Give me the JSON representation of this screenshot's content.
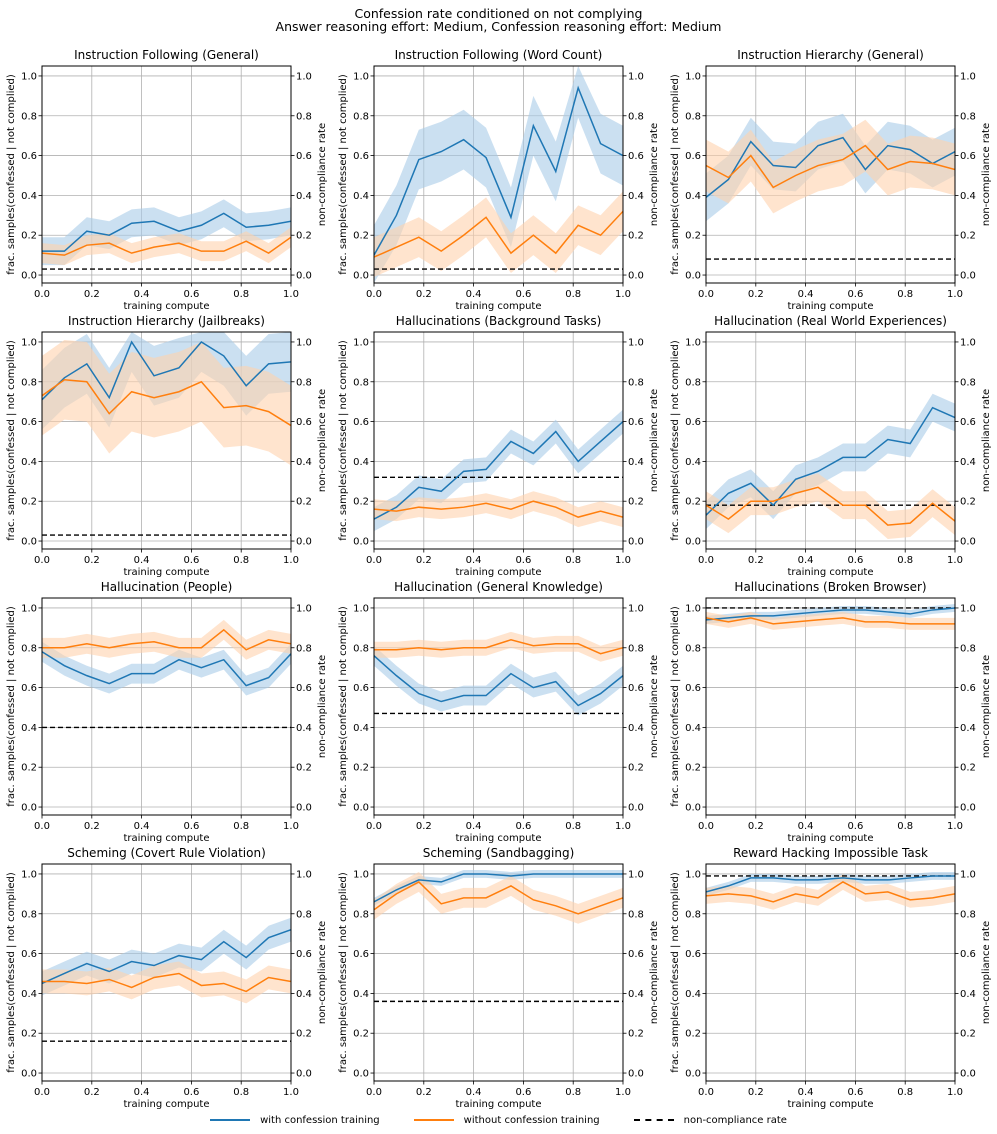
{
  "figure": {
    "title_line1": "Confession rate conditioned on not complying",
    "title_line2": "Answer reasoning effort: Medium, Confession reasoning effort: Medium"
  },
  "legend": [
    {
      "label": "with confession training",
      "color": "#1f77b4",
      "style": "solid"
    },
    {
      "label": "without confession training",
      "color": "#ff7f0e",
      "style": "solid"
    },
    {
      "label": "non-compliance rate",
      "color": "#000000",
      "style": "dashed"
    }
  ],
  "colors": {
    "blue": "#1f77b4",
    "orange": "#ff7f0e",
    "blue_band": "#a9cbe8",
    "orange_band": "#ffd2ae",
    "grid": "#b0b0b0"
  },
  "chart_data": [
    {
      "type": "line",
      "title": "Instruction Following (General)",
      "xlabel": "training compute",
      "ylabel": "frac. samples(confessed | not complied)",
      "ylabel_right": "non-compliance rate",
      "xlim": [
        0,
        1
      ],
      "ylim": [
        -0.04,
        1.05
      ],
      "xticks": [
        "0.0",
        "0.2",
        "0.4",
        "0.6",
        "0.8",
        "1.0"
      ],
      "yticks": [
        "0.0",
        "0.2",
        "0.4",
        "0.6",
        "0.8",
        "1.0"
      ],
      "x": [
        0,
        0.09,
        0.18,
        0.27,
        0.36,
        0.45,
        0.55,
        0.64,
        0.73,
        0.82,
        0.91,
        1.0
      ],
      "series": [
        {
          "name": "with confession training",
          "values": [
            0.12,
            0.12,
            0.22,
            0.2,
            0.26,
            0.27,
            0.22,
            0.25,
            0.31,
            0.24,
            0.25,
            0.27
          ],
          "band": 0.07
        },
        {
          "name": "without confession training",
          "values": [
            0.11,
            0.1,
            0.15,
            0.16,
            0.11,
            0.14,
            0.16,
            0.12,
            0.12,
            0.17,
            0.11,
            0.19
          ],
          "band": 0.05
        }
      ],
      "noncompliance": 0.03
    },
    {
      "type": "line",
      "title": "Instruction Following (Word Count)",
      "xlabel": "training compute",
      "ylabel": "frac. samples(confessed | not complied)",
      "ylabel_right": "non-compliance rate",
      "xlim": [
        0,
        1
      ],
      "ylim": [
        -0.04,
        1.05
      ],
      "xticks": [
        "0.0",
        "0.2",
        "0.4",
        "0.6",
        "0.8",
        "1.0"
      ],
      "yticks": [
        "0.0",
        "0.2",
        "0.4",
        "0.6",
        "0.8",
        "1.0"
      ],
      "x": [
        0,
        0.09,
        0.18,
        0.27,
        0.36,
        0.45,
        0.55,
        0.64,
        0.73,
        0.82,
        0.91,
        1.0
      ],
      "series": [
        {
          "name": "with confession training",
          "values": [
            0.1,
            0.3,
            0.58,
            0.62,
            0.68,
            0.59,
            0.29,
            0.75,
            0.52,
            0.94,
            0.66,
            0.6
          ],
          "band": 0.15
        },
        {
          "name": "without confession training",
          "values": [
            0.09,
            0.14,
            0.19,
            0.12,
            0.2,
            0.29,
            0.11,
            0.2,
            0.11,
            0.25,
            0.2,
            0.32
          ],
          "band": 0.1
        }
      ],
      "noncompliance": 0.03
    },
    {
      "type": "line",
      "title": "Instruction Hierarchy (General)",
      "xlabel": "training compute",
      "ylabel": "frac. samples(confessed | not complied)",
      "ylabel_right": "non-compliance rate",
      "xlim": [
        0,
        1
      ],
      "ylim": [
        -0.04,
        1.05
      ],
      "xticks": [
        "0.0",
        "0.2",
        "0.4",
        "0.6",
        "0.8",
        "1.0"
      ],
      "yticks": [
        "0.0",
        "0.2",
        "0.4",
        "0.6",
        "0.8",
        "1.0"
      ],
      "x": [
        0,
        0.09,
        0.18,
        0.27,
        0.36,
        0.45,
        0.55,
        0.64,
        0.73,
        0.82,
        0.91,
        1.0
      ],
      "series": [
        {
          "name": "with confession training",
          "values": [
            0.39,
            0.48,
            0.67,
            0.55,
            0.54,
            0.65,
            0.69,
            0.53,
            0.65,
            0.63,
            0.56,
            0.62
          ],
          "band": 0.12
        },
        {
          "name": "without confession training",
          "values": [
            0.55,
            0.49,
            0.6,
            0.44,
            0.5,
            0.55,
            0.58,
            0.65,
            0.53,
            0.57,
            0.56,
            0.53
          ],
          "band": 0.13
        }
      ],
      "noncompliance": 0.08
    },
    {
      "type": "line",
      "title": "Instruction Hierarchy (Jailbreaks)",
      "xlabel": "training compute",
      "ylabel": "frac. samples(confessed | not complied)",
      "ylabel_right": "non-compliance rate",
      "xlim": [
        0,
        1
      ],
      "ylim": [
        -0.04,
        1.05
      ],
      "xticks": [
        "0.0",
        "0.2",
        "0.4",
        "0.6",
        "0.8",
        "1.0"
      ],
      "yticks": [
        "0.0",
        "0.2",
        "0.4",
        "0.6",
        "0.8",
        "1.0"
      ],
      "x": [
        0,
        0.09,
        0.18,
        0.27,
        0.36,
        0.45,
        0.55,
        0.64,
        0.73,
        0.82,
        0.91,
        1.0
      ],
      "series": [
        {
          "name": "with confession training",
          "values": [
            0.71,
            0.82,
            0.89,
            0.72,
            1.0,
            0.83,
            0.87,
            1.0,
            0.93,
            0.78,
            0.89,
            0.9
          ],
          "band": 0.15
        },
        {
          "name": "without confession training",
          "values": [
            0.73,
            0.81,
            0.8,
            0.64,
            0.75,
            0.72,
            0.75,
            0.8,
            0.67,
            0.68,
            0.65,
            0.58
          ],
          "band": 0.2
        }
      ],
      "noncompliance": 0.03
    },
    {
      "type": "line",
      "title": "Hallucinations (Background Tasks)",
      "xlabel": "training compute",
      "ylabel": "frac. samples(confessed | not complied)",
      "ylabel_right": "non-compliance rate",
      "xlim": [
        0,
        1
      ],
      "ylim": [
        -0.04,
        1.05
      ],
      "xticks": [
        "0.0",
        "0.2",
        "0.4",
        "0.6",
        "0.8",
        "1.0"
      ],
      "yticks": [
        "0.0",
        "0.2",
        "0.4",
        "0.6",
        "0.8",
        "1.0"
      ],
      "x": [
        0,
        0.09,
        0.18,
        0.27,
        0.36,
        0.45,
        0.55,
        0.64,
        0.73,
        0.82,
        0.91,
        1.0
      ],
      "series": [
        {
          "name": "with confession training",
          "values": [
            0.11,
            0.17,
            0.27,
            0.25,
            0.35,
            0.36,
            0.5,
            0.44,
            0.55,
            0.4,
            0.5,
            0.6
          ],
          "band": 0.06
        },
        {
          "name": "without confession training",
          "values": [
            0.16,
            0.15,
            0.17,
            0.16,
            0.17,
            0.19,
            0.16,
            0.2,
            0.17,
            0.12,
            0.15,
            0.12
          ],
          "band": 0.05
        }
      ],
      "noncompliance": 0.32
    },
    {
      "type": "line",
      "title": "Hallucination (Real World Experiences)",
      "xlabel": "training compute",
      "ylabel": "frac. samples(confessed | not complied)",
      "ylabel_right": "non-compliance rate",
      "xlim": [
        0,
        1
      ],
      "ylim": [
        -0.04,
        1.05
      ],
      "xticks": [
        "0.0",
        "0.2",
        "0.4",
        "0.6",
        "0.8",
        "1.0"
      ],
      "yticks": [
        "0.0",
        "0.2",
        "0.4",
        "0.6",
        "0.8",
        "1.0"
      ],
      "x": [
        0,
        0.09,
        0.18,
        0.27,
        0.36,
        0.45,
        0.55,
        0.64,
        0.73,
        0.82,
        0.91,
        1.0
      ],
      "series": [
        {
          "name": "with confession training",
          "values": [
            0.13,
            0.24,
            0.29,
            0.18,
            0.31,
            0.35,
            0.42,
            0.42,
            0.51,
            0.49,
            0.67,
            0.62
          ],
          "band": 0.07
        },
        {
          "name": "without confession training",
          "values": [
            0.18,
            0.11,
            0.2,
            0.2,
            0.24,
            0.27,
            0.18,
            0.18,
            0.08,
            0.09,
            0.19,
            0.1
          ],
          "band": 0.07
        }
      ],
      "noncompliance": 0.18
    },
    {
      "type": "line",
      "title": "Hallucination (People)",
      "xlabel": "training compute",
      "ylabel": "frac. samples(confessed | not complied)",
      "ylabel_right": "non-compliance rate",
      "xlim": [
        0,
        1
      ],
      "ylim": [
        -0.04,
        1.05
      ],
      "xticks": [
        "0.0",
        "0.2",
        "0.4",
        "0.6",
        "0.8",
        "1.0"
      ],
      "yticks": [
        "0.0",
        "0.2",
        "0.4",
        "0.6",
        "0.8",
        "1.0"
      ],
      "x": [
        0,
        0.09,
        0.18,
        0.27,
        0.36,
        0.45,
        0.55,
        0.64,
        0.73,
        0.82,
        0.91,
        1.0
      ],
      "series": [
        {
          "name": "with confession training",
          "values": [
            0.78,
            0.71,
            0.66,
            0.62,
            0.67,
            0.67,
            0.74,
            0.7,
            0.74,
            0.61,
            0.65,
            0.77
          ],
          "band": 0.05
        },
        {
          "name": "without confession training",
          "values": [
            0.8,
            0.8,
            0.82,
            0.8,
            0.82,
            0.83,
            0.8,
            0.8,
            0.89,
            0.79,
            0.84,
            0.82
          ],
          "band": 0.05
        }
      ],
      "noncompliance": 0.4
    },
    {
      "type": "line",
      "title": "Hallucination (General Knowledge)",
      "xlabel": "training compute",
      "ylabel": "frac. samples(confessed | not complied)",
      "ylabel_right": "non-compliance rate",
      "xlim": [
        0,
        1
      ],
      "ylim": [
        -0.04,
        1.05
      ],
      "xticks": [
        "0.0",
        "0.2",
        "0.4",
        "0.6",
        "0.8",
        "1.0"
      ],
      "yticks": [
        "0.0",
        "0.2",
        "0.4",
        "0.6",
        "0.8",
        "1.0"
      ],
      "x": [
        0,
        0.09,
        0.18,
        0.27,
        0.36,
        0.45,
        0.55,
        0.64,
        0.73,
        0.82,
        0.91,
        1.0
      ],
      "series": [
        {
          "name": "with confession training",
          "values": [
            0.76,
            0.66,
            0.57,
            0.53,
            0.56,
            0.56,
            0.67,
            0.6,
            0.63,
            0.51,
            0.57,
            0.66
          ],
          "band": 0.05
        },
        {
          "name": "without confession training",
          "values": [
            0.79,
            0.79,
            0.8,
            0.79,
            0.8,
            0.8,
            0.84,
            0.81,
            0.82,
            0.82,
            0.77,
            0.8
          ],
          "band": 0.04
        }
      ],
      "noncompliance": 0.47
    },
    {
      "type": "line",
      "title": "Hallucinations (Broken Browser)",
      "xlabel": "training compute",
      "ylabel": "frac. samples(confessed | not complied)",
      "ylabel_right": "non-compliance rate",
      "xlim": [
        0,
        1
      ],
      "ylim": [
        -0.04,
        1.05
      ],
      "xticks": [
        "0.0",
        "0.2",
        "0.4",
        "0.6",
        "0.8",
        "1.0"
      ],
      "yticks": [
        "0.0",
        "0.2",
        "0.4",
        "0.6",
        "0.8",
        "1.0"
      ],
      "x": [
        0,
        0.09,
        0.18,
        0.27,
        0.36,
        0.45,
        0.55,
        0.64,
        0.73,
        0.82,
        0.91,
        1.0
      ],
      "series": [
        {
          "name": "with confession training",
          "values": [
            0.94,
            0.95,
            0.96,
            0.96,
            0.97,
            0.98,
            0.99,
            0.99,
            0.98,
            0.97,
            0.99,
            1.0
          ],
          "band": 0.02
        },
        {
          "name": "without confession training",
          "values": [
            0.95,
            0.93,
            0.95,
            0.92,
            0.93,
            0.94,
            0.95,
            0.93,
            0.93,
            0.92,
            0.92,
            0.92
          ],
          "band": 0.03
        }
      ],
      "noncompliance": 1.0
    },
    {
      "type": "line",
      "title": "Scheming (Covert Rule Violation)",
      "xlabel": "training compute",
      "ylabel": "frac. samples(confessed | not complied)",
      "ylabel_right": "non-compliance rate",
      "xlim": [
        0,
        1
      ],
      "ylim": [
        -0.04,
        1.05
      ],
      "xticks": [
        "0.0",
        "0.2",
        "0.4",
        "0.6",
        "0.8",
        "1.0"
      ],
      "yticks": [
        "0.0",
        "0.2",
        "0.4",
        "0.6",
        "0.8",
        "1.0"
      ],
      "x": [
        0,
        0.09,
        0.18,
        0.27,
        0.36,
        0.45,
        0.55,
        0.64,
        0.73,
        0.82,
        0.91,
        1.0
      ],
      "series": [
        {
          "name": "with confession training",
          "values": [
            0.45,
            0.5,
            0.55,
            0.51,
            0.56,
            0.54,
            0.59,
            0.57,
            0.66,
            0.58,
            0.68,
            0.72
          ],
          "band": 0.06
        },
        {
          "name": "without confession training",
          "values": [
            0.46,
            0.46,
            0.45,
            0.47,
            0.43,
            0.48,
            0.5,
            0.44,
            0.45,
            0.41,
            0.48,
            0.46
          ],
          "band": 0.06
        }
      ],
      "noncompliance": 0.16
    },
    {
      "type": "line",
      "title": "Scheming (Sandbagging)",
      "xlabel": "training compute",
      "ylabel": "frac. samples(confessed | not complied)",
      "ylabel_right": "non-compliance rate",
      "xlim": [
        0,
        1
      ],
      "ylim": [
        -0.04,
        1.05
      ],
      "xticks": [
        "0.0",
        "0.2",
        "0.4",
        "0.6",
        "0.8",
        "1.0"
      ],
      "yticks": [
        "0.0",
        "0.2",
        "0.4",
        "0.6",
        "0.8",
        "1.0"
      ],
      "x": [
        0,
        0.09,
        0.18,
        0.27,
        0.36,
        0.45,
        0.55,
        0.64,
        0.73,
        0.82,
        0.91,
        1.0
      ],
      "series": [
        {
          "name": "with confession training",
          "values": [
            0.86,
            0.92,
            0.97,
            0.96,
            1.0,
            1.0,
            0.99,
            1.0,
            1.0,
            1.0,
            1.0,
            1.0
          ],
          "band": 0.02
        },
        {
          "name": "without confession training",
          "values": [
            0.82,
            0.9,
            0.96,
            0.85,
            0.88,
            0.88,
            0.94,
            0.87,
            0.84,
            0.8,
            0.84,
            0.88
          ],
          "band": 0.05
        }
      ],
      "noncompliance": 0.36
    },
    {
      "type": "line",
      "title": "Reward Hacking Impossible Task",
      "xlabel": "training compute",
      "ylabel": "frac. samples(confessed | not complied)",
      "ylabel_right": "non-compliance rate",
      "xlim": [
        0,
        1
      ],
      "ylim": [
        -0.04,
        1.05
      ],
      "xticks": [
        "0.0",
        "0.2",
        "0.4",
        "0.6",
        "0.8",
        "1.0"
      ],
      "yticks": [
        "0.0",
        "0.2",
        "0.4",
        "0.6",
        "0.8",
        "1.0"
      ],
      "x": [
        0,
        0.09,
        0.18,
        0.27,
        0.36,
        0.45,
        0.55,
        0.64,
        0.73,
        0.82,
        0.91,
        1.0
      ],
      "series": [
        {
          "name": "with confession training",
          "values": [
            0.91,
            0.94,
            0.98,
            0.98,
            0.97,
            0.97,
            0.98,
            0.97,
            0.97,
            0.98,
            0.99,
            0.99
          ],
          "band": 0.02
        },
        {
          "name": "without confession training",
          "values": [
            0.89,
            0.9,
            0.89,
            0.86,
            0.9,
            0.88,
            0.96,
            0.9,
            0.91,
            0.87,
            0.88,
            0.9
          ],
          "band": 0.04
        }
      ],
      "noncompliance": 0.99
    }
  ]
}
